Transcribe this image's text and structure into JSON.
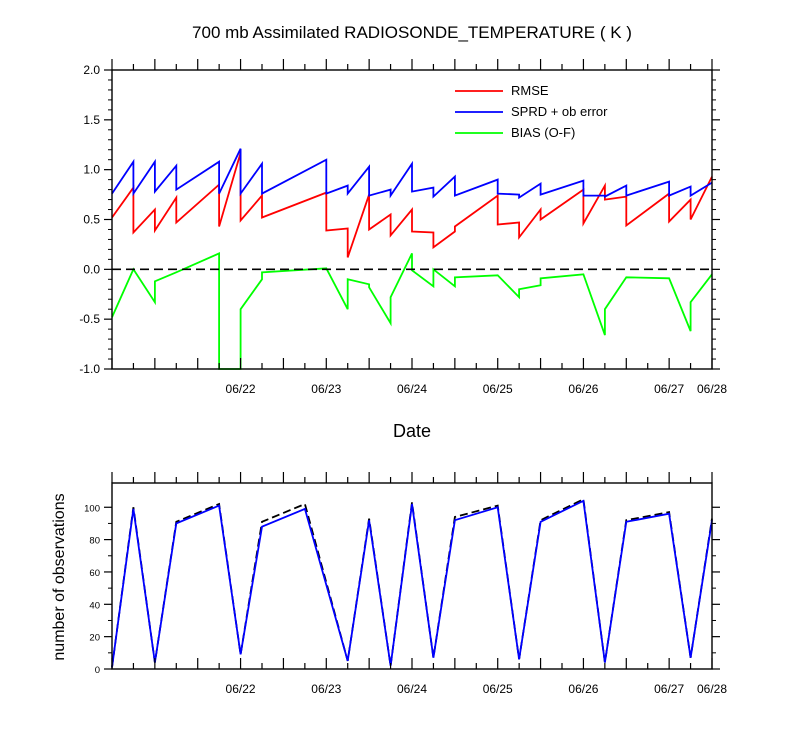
{
  "chart_data": [
    {
      "type": "line",
      "title": "700 mb Assimilated RADIOSONDE_TEMPERATURE ( K )",
      "xlabel": "Date",
      "ylabel": "",
      "ylim": [
        -1.0,
        2.0
      ],
      "yticks": [
        "-1.0",
        "-0.5",
        "0.0",
        "0.5",
        "1.0",
        "1.5",
        "2.0"
      ],
      "xlim": [
        0,
        7
      ],
      "xticks": [
        {
          "label": "06/22",
          "x": 1.5
        },
        {
          "label": "06/23",
          "x": 2.5
        },
        {
          "label": "06/24",
          "x": 3.5
        },
        {
          "label": "06/25",
          "x": 4.5
        },
        {
          "label": "06/26",
          "x": 5.5
        },
        {
          "label": "06/27",
          "x": 6.5
        },
        {
          "label": "06/28",
          "x": 7.0
        }
      ],
      "zero_line": {
        "y": 0,
        "style": "dashed",
        "color": "#000000"
      },
      "legend": {
        "placement": "top-right"
      },
      "series": [
        {
          "name": "RMSE",
          "color": "#ff0000",
          "points": [
            [
              0,
              0.52
            ],
            [
              0.25,
              0.82
            ],
            [
              0.25,
              0.37
            ],
            [
              0.5,
              0.6
            ],
            [
              0.5,
              0.39
            ],
            [
              0.75,
              0.72
            ],
            [
              0.75,
              0.47
            ],
            [
              1.25,
              0.85
            ],
            [
              1.25,
              0.43
            ],
            [
              1.5,
              1.17
            ],
            [
              1.5,
              0.49
            ],
            [
              1.75,
              0.74
            ],
            [
              1.75,
              0.52
            ],
            [
              2.5,
              0.77
            ],
            [
              2.5,
              0.39
            ],
            [
              2.75,
              0.41
            ],
            [
              2.75,
              0.12
            ],
            [
              3.0,
              0.75
            ],
            [
              3.0,
              0.4
            ],
            [
              3.25,
              0.55
            ],
            [
              3.25,
              0.34
            ],
            [
              3.5,
              0.6
            ],
            [
              3.5,
              0.38
            ],
            [
              3.75,
              0.37
            ],
            [
              3.75,
              0.22
            ],
            [
              4.0,
              0.38
            ],
            [
              4.0,
              0.43
            ],
            [
              4.5,
              0.74
            ],
            [
              4.5,
              0.45
            ],
            [
              4.75,
              0.47
            ],
            [
              4.75,
              0.32
            ],
            [
              5.0,
              0.6
            ],
            [
              5.0,
              0.5
            ],
            [
              5.5,
              0.8
            ],
            [
              5.5,
              0.46
            ],
            [
              5.75,
              0.84
            ],
            [
              5.75,
              0.7
            ],
            [
              6.0,
              0.73
            ],
            [
              6.0,
              0.44
            ],
            [
              6.5,
              0.76
            ],
            [
              6.5,
              0.48
            ],
            [
              6.75,
              0.7
            ],
            [
              6.75,
              0.5
            ],
            [
              7.0,
              0.93
            ]
          ]
        },
        {
          "name": "SPRD + ob error",
          "color": "#0000ff",
          "points": [
            [
              0,
              0.76
            ],
            [
              0.25,
              1.08
            ],
            [
              0.25,
              0.76
            ],
            [
              0.5,
              1.08
            ],
            [
              0.5,
              0.78
            ],
            [
              0.75,
              1.04
            ],
            [
              0.75,
              0.8
            ],
            [
              1.25,
              1.08
            ],
            [
              1.25,
              0.76
            ],
            [
              1.5,
              1.21
            ],
            [
              1.5,
              0.76
            ],
            [
              1.75,
              1.06
            ],
            [
              1.75,
              0.76
            ],
            [
              2.5,
              1.1
            ],
            [
              2.5,
              0.76
            ],
            [
              2.75,
              0.84
            ],
            [
              2.75,
              0.76
            ],
            [
              3.0,
              1.03
            ],
            [
              3.0,
              0.74
            ],
            [
              3.25,
              0.8
            ],
            [
              3.25,
              0.74
            ],
            [
              3.5,
              1.06
            ],
            [
              3.5,
              0.78
            ],
            [
              3.75,
              0.82
            ],
            [
              3.75,
              0.73
            ],
            [
              4.0,
              0.93
            ],
            [
              4.0,
              0.74
            ],
            [
              4.5,
              0.9
            ],
            [
              4.5,
              0.76
            ],
            [
              4.75,
              0.75
            ],
            [
              4.75,
              0.72
            ],
            [
              5.0,
              0.86
            ],
            [
              5.0,
              0.75
            ],
            [
              5.5,
              0.89
            ],
            [
              5.5,
              0.74
            ],
            [
              5.75,
              0.74
            ],
            [
              5.75,
              0.73
            ],
            [
              6.0,
              0.84
            ],
            [
              6.0,
              0.74
            ],
            [
              6.5,
              0.88
            ],
            [
              6.5,
              0.74
            ],
            [
              6.75,
              0.83
            ],
            [
              6.75,
              0.74
            ],
            [
              7.0,
              0.87
            ]
          ]
        },
        {
          "name": "BIAS (O-F)",
          "color": "#00ff00",
          "points": [
            [
              0,
              -0.48
            ],
            [
              0.25,
              0.0
            ],
            [
              0.5,
              -0.33
            ],
            [
              0.5,
              -0.12
            ],
            [
              0.75,
              -0.03
            ],
            [
              1.25,
              0.16
            ],
            [
              1.25,
              -1.0
            ],
            [
              1.5,
              -1.0
            ],
            [
              1.5,
              -0.4
            ],
            [
              1.75,
              -0.1
            ],
            [
              1.75,
              -0.03
            ],
            [
              2.5,
              0.01
            ],
            [
              2.75,
              -0.4
            ],
            [
              2.75,
              -0.1
            ],
            [
              3.0,
              -0.15
            ],
            [
              3.0,
              -0.18
            ],
            [
              3.25,
              -0.54
            ],
            [
              3.25,
              -0.28
            ],
            [
              3.5,
              0.16
            ],
            [
              3.5,
              -0.01
            ],
            [
              3.75,
              -0.17
            ],
            [
              3.75,
              0.0
            ],
            [
              4.0,
              -0.17
            ],
            [
              4.0,
              -0.08
            ],
            [
              4.5,
              -0.06
            ],
            [
              4.75,
              -0.28
            ],
            [
              4.75,
              -0.2
            ],
            [
              5.0,
              -0.16
            ],
            [
              5.0,
              -0.09
            ],
            [
              5.5,
              -0.05
            ],
            [
              5.75,
              -0.66
            ],
            [
              5.75,
              -0.4
            ],
            [
              6.0,
              -0.08
            ],
            [
              6.5,
              -0.09
            ],
            [
              6.75,
              -0.62
            ],
            [
              6.75,
              -0.33
            ],
            [
              7.0,
              -0.05
            ]
          ]
        }
      ]
    },
    {
      "type": "line",
      "title": "",
      "xlabel": "",
      "ylabel": "number of observations",
      "ylim": [
        0,
        115
      ],
      "yticks": [
        "0",
        "20",
        "40",
        "60",
        "80",
        "100"
      ],
      "xlim": [
        0,
        7
      ],
      "xticks": [
        {
          "label": "06/22",
          "x": 1.5
        },
        {
          "label": "06/23",
          "x": 2.5
        },
        {
          "label": "06/24",
          "x": 3.5
        },
        {
          "label": "06/25",
          "x": 4.5
        },
        {
          "label": "06/26",
          "x": 5.5
        },
        {
          "label": "06/27",
          "x": 6.5
        },
        {
          "label": "06/28",
          "x": 7.0
        }
      ],
      "series": [
        {
          "name": "",
          "color": "#000000",
          "dashed": true,
          "points": [
            [
              0,
              1
            ],
            [
              0.25,
              100
            ],
            [
              0.5,
              4
            ],
            [
              0.75,
              91
            ],
            [
              1.25,
              102
            ],
            [
              1.5,
              9
            ],
            [
              1.75,
              91
            ],
            [
              2.25,
              102
            ],
            [
              2.75,
              5
            ],
            [
              3.0,
              93
            ],
            [
              3.25,
              2
            ],
            [
              3.5,
              103
            ],
            [
              3.75,
              7
            ],
            [
              4.0,
              94
            ],
            [
              4.5,
              101
            ],
            [
              4.75,
              6
            ],
            [
              5.0,
              92
            ],
            [
              5.5,
              105
            ],
            [
              5.75,
              4
            ],
            [
              6.0,
              92
            ],
            [
              6.5,
              97
            ],
            [
              6.75,
              7
            ],
            [
              7.0,
              93
            ]
          ]
        },
        {
          "name": "",
          "color": "#0000ff",
          "dashed": false,
          "points": [
            [
              0,
              1
            ],
            [
              0.25,
              99
            ],
            [
              0.5,
              4
            ],
            [
              0.75,
              90
            ],
            [
              1.25,
              101
            ],
            [
              1.5,
              9
            ],
            [
              1.75,
              88
            ],
            [
              2.25,
              99
            ],
            [
              2.75,
              5
            ],
            [
              3.0,
              92
            ],
            [
              3.25,
              2
            ],
            [
              3.5,
              102
            ],
            [
              3.75,
              7
            ],
            [
              4.0,
              92
            ],
            [
              4.5,
              100
            ],
            [
              4.75,
              6
            ],
            [
              5.0,
              91
            ],
            [
              5.5,
              104
            ],
            [
              5.75,
              4
            ],
            [
              6.0,
              91
            ],
            [
              6.5,
              96
            ],
            [
              6.75,
              7
            ],
            [
              7.0,
              92
            ]
          ]
        }
      ]
    }
  ]
}
